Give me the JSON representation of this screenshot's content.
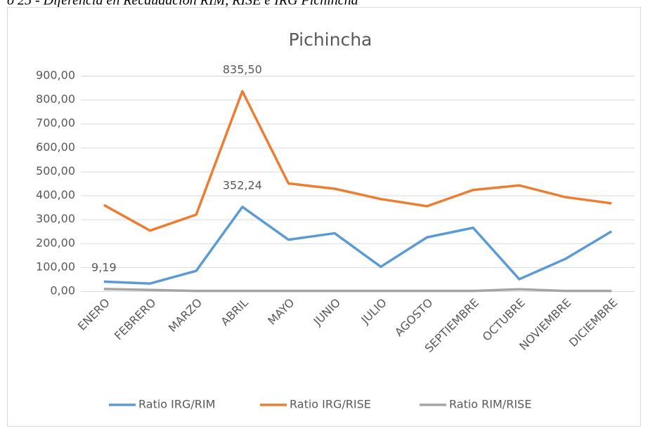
{
  "caption": "o 25 - Diferencia en Recaudación RIM, RISE e IRG Pichincha",
  "chart_data": {
    "type": "line",
    "title": "Pichincha",
    "categories": [
      "ENERO",
      "FEBRERO",
      "MARZO",
      "ABRIL",
      "MAYO",
      "JUNIO",
      "JULIO",
      "AGOSTO",
      "SEPTIEMBRE",
      "OCTUBRE",
      "NOVIEMBRE",
      "DICIEMBRE"
    ],
    "series": [
      {
        "name": "Ratio IRG/RIM",
        "color": "#5b9bd5",
        "values": [
          40,
          32,
          85,
          352.24,
          215,
          242,
          102,
          225,
          265,
          50,
          135,
          250
        ],
        "value_labels": [
          null,
          null,
          null,
          "352,24",
          null,
          null,
          null,
          null,
          null,
          null,
          null,
          null
        ]
      },
      {
        "name": "Ratio IRG/RISE",
        "color": "#ed7d31",
        "values": [
          360,
          253,
          320,
          835.5,
          450,
          428,
          385,
          355,
          423,
          442,
          393,
          367
        ],
        "value_labels": [
          null,
          null,
          null,
          "835,50",
          null,
          null,
          null,
          null,
          null,
          null,
          null,
          null
        ]
      },
      {
        "name": "Ratio RIM/RISE",
        "color": "#a5a5a5",
        "values": [
          9.19,
          5,
          1,
          1,
          1,
          1,
          1,
          1,
          1,
          8,
          1,
          1
        ],
        "value_labels": [
          "9,19",
          null,
          null,
          null,
          null,
          null,
          null,
          null,
          null,
          null,
          null,
          null
        ]
      }
    ],
    "ylim": [
      0,
      900
    ],
    "yticks": [
      {
        "value": 0,
        "label": "0,00"
      },
      {
        "value": 100,
        "label": "100,00"
      },
      {
        "value": 200,
        "label": "200,00"
      },
      {
        "value": 300,
        "label": "300,00"
      },
      {
        "value": 400,
        "label": "400,00"
      },
      {
        "value": 500,
        "label": "500,00"
      },
      {
        "value": 600,
        "label": "600,00"
      },
      {
        "value": 700,
        "label": "700,00"
      },
      {
        "value": 800,
        "label": "800,00"
      },
      {
        "value": 900,
        "label": "900,00"
      }
    ],
    "grid": true,
    "legend": "bottom"
  }
}
